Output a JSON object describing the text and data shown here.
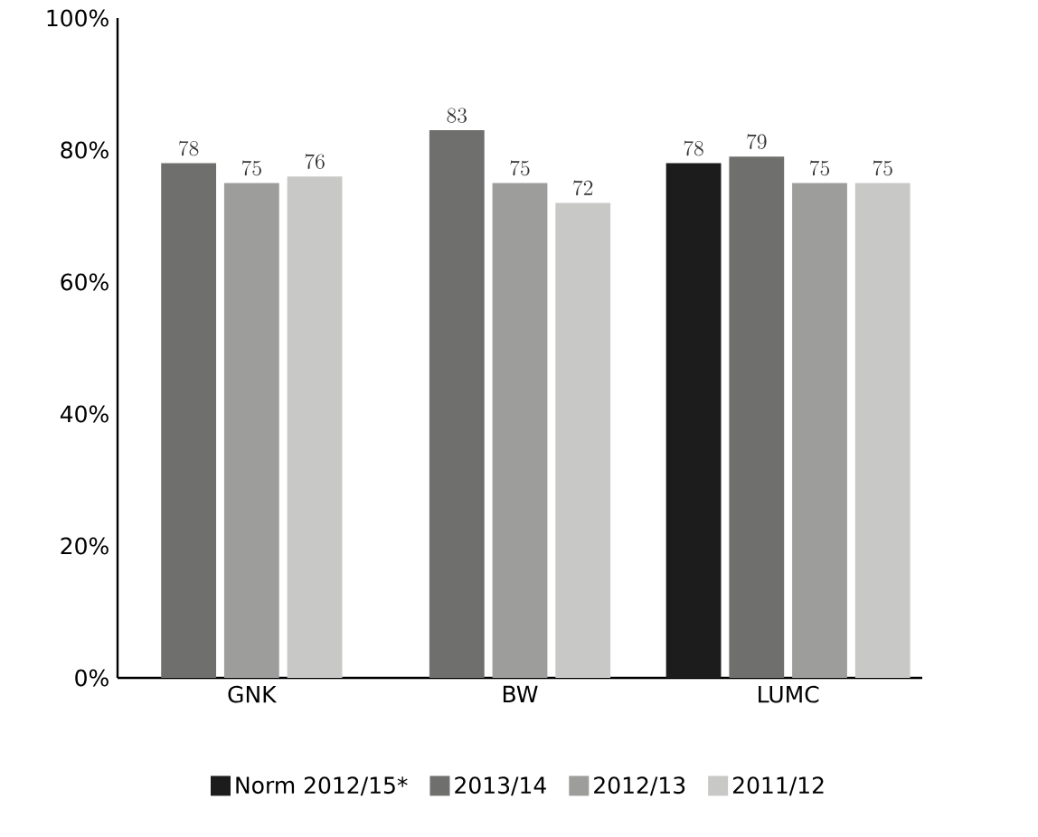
{
  "chart_data": {
    "type": "bar",
    "categories": [
      "GNK",
      "BW",
      "LUMC"
    ],
    "series": [
      {
        "name": "Norm 2012/15*",
        "color": "#1c1c1c",
        "values": [
          null,
          null,
          78
        ]
      },
      {
        "name": "2013/14",
        "color": "#6f6f6d",
        "values": [
          78,
          83,
          79
        ]
      },
      {
        "name": "2012/13",
        "color": "#9d9d9b",
        "values": [
          75,
          75,
          75
        ]
      },
      {
        "name": "2011/12",
        "color": "#c8c8c6",
        "values": [
          76,
          72,
          75
        ]
      }
    ],
    "ylim": [
      0,
      100
    ],
    "yticks": [
      {
        "value": 0,
        "label": "0%"
      },
      {
        "value": 20,
        "label": "20%"
      },
      {
        "value": 40,
        "label": "40%"
      },
      {
        "value": 60,
        "label": "60%"
      },
      {
        "value": 80,
        "label": "80%"
      },
      {
        "value": 100,
        "label": "100%"
      }
    ],
    "data_labels": true,
    "grid": false,
    "legend": "bottom"
  }
}
